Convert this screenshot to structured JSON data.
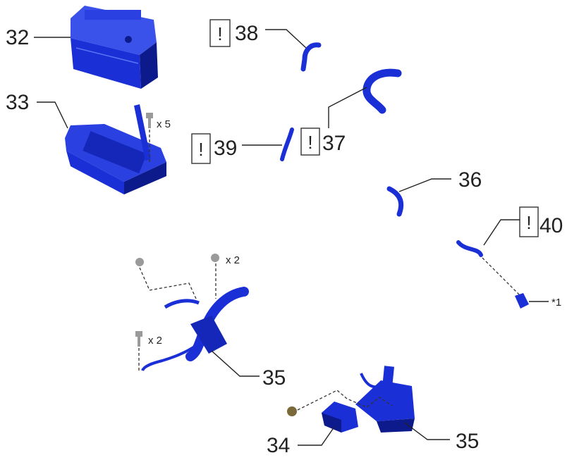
{
  "callouts": {
    "c32": "32",
    "c33": "33",
    "c34": "34",
    "c35a": "35",
    "c35b": "35",
    "c36": "36",
    "c37": "37",
    "c38": "38",
    "c39": "39",
    "c40": "40"
  },
  "qty": {
    "bolt_x5": "x 5",
    "nut_x2": "x 2",
    "bolt_x2": "x 2"
  },
  "note_star1": "*1",
  "warn_symbol": "!",
  "colors": {
    "part_blue": "#1a2fd6",
    "part_dark": "#0d1a8c",
    "part_light": "#4a63f0",
    "line": "#222222",
    "fastener": "#9a9a9a"
  }
}
